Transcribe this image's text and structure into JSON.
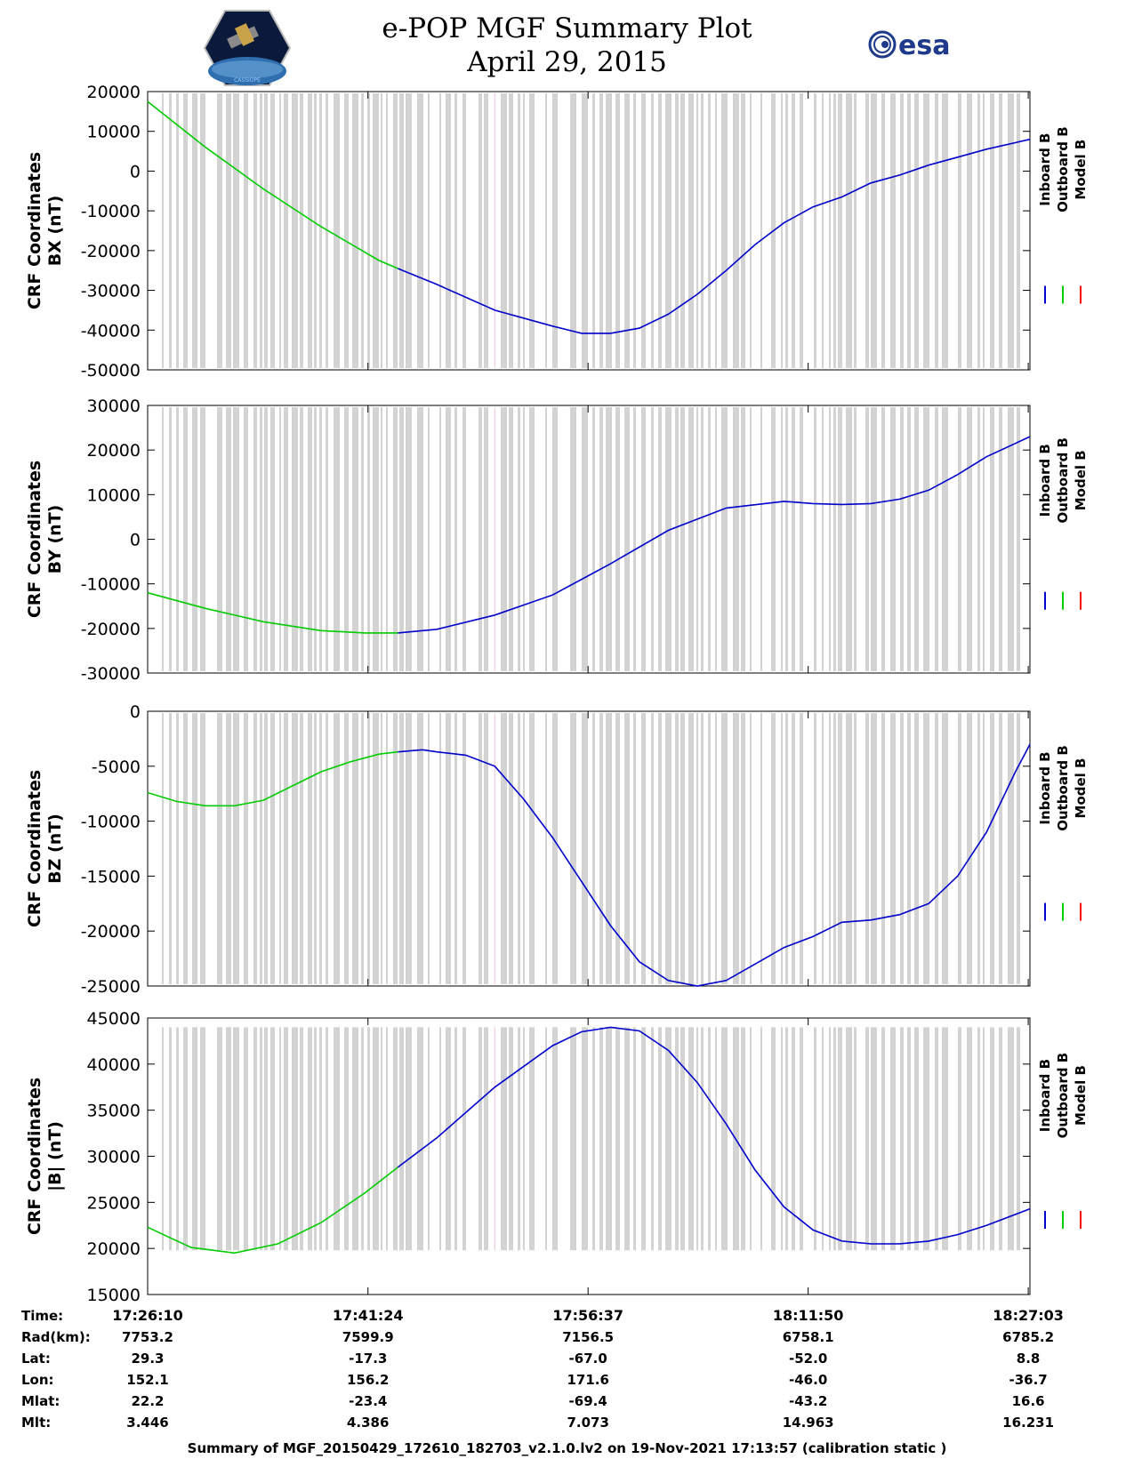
{
  "header": {
    "title_line1": "e-POP MGF Summary Plot",
    "title_line2": "April 29, 2015"
  },
  "logos": {
    "left": "epop-cassiope-logo",
    "right": "esa"
  },
  "footer": "Summary of MGF_20150429_172610_182703_v2.1.0.lv2 on 19-Nov-2021 17:13:57 (calibration static )",
  "colors": {
    "inboard": "#0000cc",
    "outboard": "#00cc00",
    "model": "#ff0000",
    "gap": "#d3d3d3"
  },
  "chart_data": [
    {
      "type": "line",
      "ylabel_line1": "CRF Coordinates",
      "ylabel_line2": "BX (nT)",
      "ylim": [
        -50000,
        20000
      ],
      "yticks": [
        20000,
        10000,
        0,
        -10000,
        -20000,
        -30000,
        -40000,
        -50000
      ],
      "xlim": [
        0,
        61
      ],
      "legend": [
        "Inboard B",
        "Outboard B",
        "Model B"
      ],
      "legend_position": "right",
      "series": [
        {
          "name": "Outboard B",
          "color": "#00cc00",
          "x": [
            0,
            4,
            8,
            12,
            16,
            17.3
          ],
          "y": [
            17500,
            6000,
            -4500,
            -14000,
            -22500,
            -24500
          ]
        },
        {
          "name": "Inboard B",
          "color": "#0000cc",
          "x": [
            17.3,
            20,
            24,
            28,
            30,
            32,
            34,
            36,
            38,
            40,
            42,
            44,
            46,
            48,
            50,
            52,
            54,
            56,
            58,
            61
          ],
          "y": [
            -24500,
            -28500,
            -35000,
            -39000,
            -40800,
            -40800,
            -39500,
            -36000,
            -31000,
            -25000,
            -18500,
            -13000,
            -9000,
            -6500,
            -3000,
            -1000,
            1500,
            3500,
            5500,
            8000
          ]
        }
      ]
    },
    {
      "type": "line",
      "ylabel_line1": "CRF Coordinates",
      "ylabel_line2": "BY (nT)",
      "ylim": [
        -30000,
        30000
      ],
      "yticks": [
        30000,
        20000,
        10000,
        0,
        -10000,
        -20000,
        -30000
      ],
      "xlim": [
        0,
        61
      ],
      "legend": [
        "Inboard B",
        "Outboard B",
        "Model B"
      ],
      "legend_position": "right",
      "series": [
        {
          "name": "Outboard B",
          "color": "#00cc00",
          "x": [
            0,
            4,
            8,
            12,
            15,
            17.3
          ],
          "y": [
            -12000,
            -15500,
            -18500,
            -20500,
            -21000,
            -21000
          ]
        },
        {
          "name": "Inboard B",
          "color": "#0000cc",
          "x": [
            17.3,
            20,
            24,
            28,
            32,
            36,
            40,
            44,
            46,
            48,
            50,
            52,
            54,
            56,
            58,
            61
          ],
          "y": [
            -21000,
            -20200,
            -17000,
            -12500,
            -5500,
            2000,
            7000,
            8500,
            8000,
            7800,
            8000,
            9000,
            11000,
            14500,
            18500,
            23000
          ]
        }
      ]
    },
    {
      "type": "line",
      "ylabel_line1": "CRF Coordinates",
      "ylabel_line2": "BZ (nT)",
      "ylim": [
        -25000,
        0
      ],
      "yticks": [
        0,
        -5000,
        -10000,
        -15000,
        -20000,
        -25000
      ],
      "xlim": [
        0,
        61
      ],
      "legend": [
        "Inboard B",
        "Outboard B",
        "Model B"
      ],
      "legend_position": "right",
      "series": [
        {
          "name": "Outboard B",
          "color": "#00cc00",
          "x": [
            0,
            2,
            4,
            6,
            8,
            10,
            12,
            14,
            16,
            17.3
          ],
          "y": [
            -7400,
            -8200,
            -8600,
            -8600,
            -8100,
            -6800,
            -5500,
            -4600,
            -3900,
            -3700
          ]
        },
        {
          "name": "Inboard B",
          "color": "#0000cc",
          "x": [
            17.3,
            19,
            20,
            22,
            24,
            26,
            28,
            30,
            32,
            34,
            36,
            38,
            40,
            42,
            44,
            46,
            48,
            50,
            52,
            54,
            56,
            58,
            60,
            61
          ],
          "y": [
            -3700,
            -3500,
            -3700,
            -4000,
            -5000,
            -8000,
            -11500,
            -15500,
            -19500,
            -22800,
            -24500,
            -25000,
            -24500,
            -23000,
            -21500,
            -20500,
            -19200,
            -19000,
            -18500,
            -17500,
            -15000,
            -11000,
            -5500,
            -3000
          ]
        }
      ]
    },
    {
      "type": "line",
      "ylabel_line1": "CRF Coordinates",
      "ylabel_line2": "|B| (nT)",
      "ylim": [
        15000,
        45000
      ],
      "yticks": [
        45000,
        40000,
        35000,
        30000,
        25000,
        20000,
        15000
      ],
      "xlim": [
        0,
        61
      ],
      "legend": [
        "Inboard B",
        "Outboard B",
        "Model B"
      ],
      "legend_position": "right",
      "series": [
        {
          "name": "Outboard B",
          "color": "#00cc00",
          "x": [
            0,
            3,
            6,
            9,
            12,
            15,
            17.3
          ],
          "y": [
            22300,
            20100,
            19500,
            20500,
            22800,
            26000,
            28800
          ]
        },
        {
          "name": "Inboard B",
          "color": "#0000cc",
          "x": [
            17.3,
            20,
            24,
            28,
            30,
            32,
            34,
            36,
            38,
            40,
            42,
            44,
            46,
            48,
            50,
            52,
            54,
            56,
            58,
            61
          ],
          "y": [
            28800,
            32000,
            37500,
            42000,
            43500,
            44000,
            43600,
            41500,
            38000,
            33500,
            28500,
            24500,
            22000,
            20800,
            20500,
            20500,
            20800,
            21500,
            22500,
            24300
          ]
        }
      ]
    }
  ],
  "time_axis": {
    "ticks_minutes": [
      0,
      15.233,
      30.45,
      45.667,
      60.883
    ],
    "rows": [
      {
        "label": "Time:",
        "values": [
          "17:26:10",
          "17:41:24",
          "17:56:37",
          "18:11:50",
          "18:27:03"
        ]
      },
      {
        "label": "Rad(km):",
        "values": [
          "7753.2",
          "7599.9",
          "7156.5",
          "6758.1",
          "6785.2"
        ]
      },
      {
        "label": "Lat:",
        "values": [
          "29.3",
          "-17.3",
          "-67.0",
          "-52.0",
          "8.8"
        ]
      },
      {
        "label": "Lon:",
        "values": [
          "152.1",
          "156.2",
          "171.6",
          "-46.0",
          "-36.7"
        ]
      },
      {
        "label": "Mlat:",
        "values": [
          "22.2",
          "-23.4",
          "-69.4",
          "-43.2",
          "16.6"
        ]
      },
      {
        "label": "Mlt:",
        "values": [
          "3.446",
          "4.386",
          "7.073",
          "14.963",
          "16.231"
        ]
      }
    ]
  }
}
